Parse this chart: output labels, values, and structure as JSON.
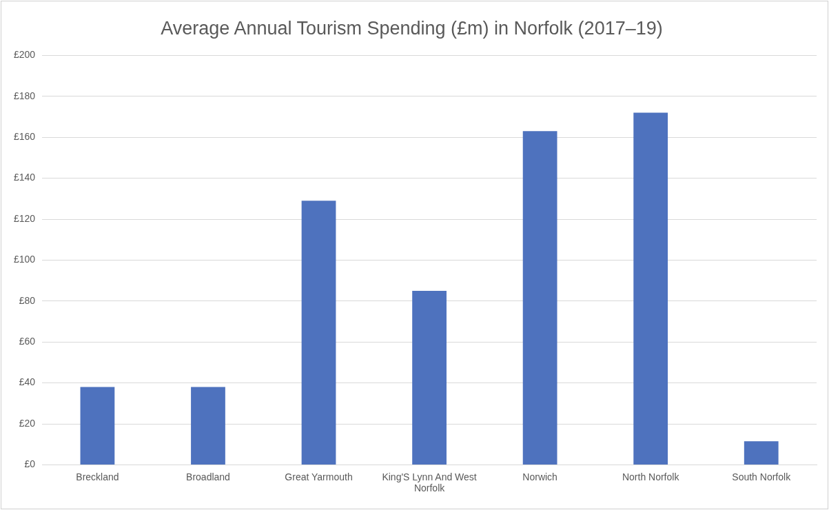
{
  "chart_data": {
    "type": "bar",
    "title": "Average Annual Tourism Spending (£m) in Norfolk (2017–19)",
    "categories": [
      "Breckland",
      "Broadland",
      "Great Yarmouth",
      "King'S Lynn And West Norfolk",
      "Norwich",
      "North Norfolk",
      "South Norfolk"
    ],
    "values": [
      38,
      38,
      129,
      85,
      163,
      172,
      11.5
    ],
    "color": "#4e72be",
    "ylim": [
      0,
      200
    ],
    "yticks": [
      {
        "value": 0,
        "label": "£0"
      },
      {
        "value": 20,
        "label": "£20"
      },
      {
        "value": 40,
        "label": "£40"
      },
      {
        "value": 60,
        "label": "£60"
      },
      {
        "value": 80,
        "label": "£80"
      },
      {
        "value": 100,
        "label": "£100"
      },
      {
        "value": 120,
        "label": "£120"
      },
      {
        "value": 140,
        "label": "£140"
      },
      {
        "value": 160,
        "label": "£160"
      },
      {
        "value": 180,
        "label": "£180"
      },
      {
        "value": 200,
        "label": "£200"
      }
    ],
    "grid": "y",
    "legend": false
  }
}
